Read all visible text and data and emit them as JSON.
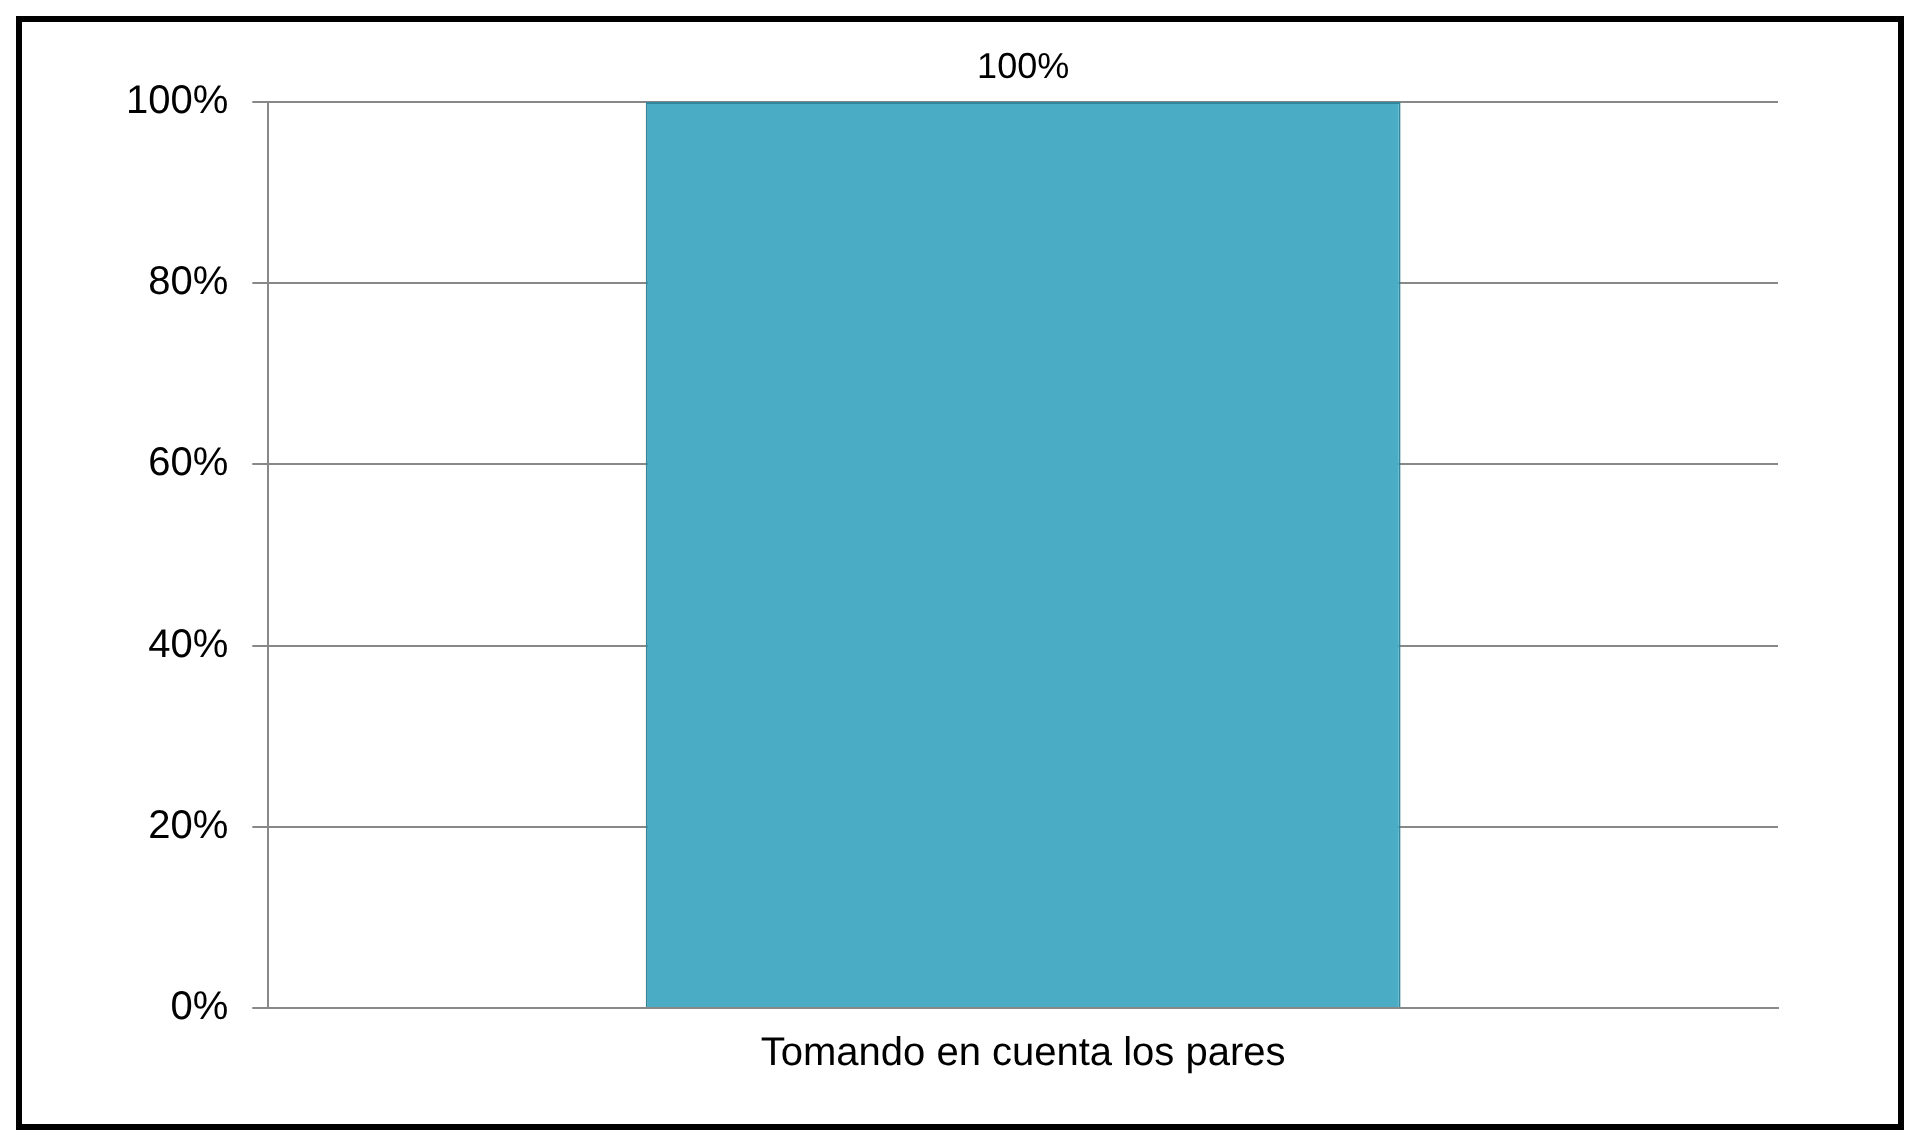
{
  "chart_data": {
    "type": "bar",
    "categories": [
      "Tomando en cuenta los pares"
    ],
    "values": [
      100
    ],
    "value_labels": [
      "100%"
    ],
    "color": "#4bacc6",
    "ylim": [
      0,
      100
    ],
    "yticks": [
      {
        "value": 0,
        "label": "0%"
      },
      {
        "value": 20,
        "label": "20%"
      },
      {
        "value": 40,
        "label": "40%"
      },
      {
        "value": 60,
        "label": "60%"
      },
      {
        "value": 80,
        "label": "80%"
      },
      {
        "value": 100,
        "label": "100%"
      }
    ],
    "grid": "y",
    "legend": false
  }
}
